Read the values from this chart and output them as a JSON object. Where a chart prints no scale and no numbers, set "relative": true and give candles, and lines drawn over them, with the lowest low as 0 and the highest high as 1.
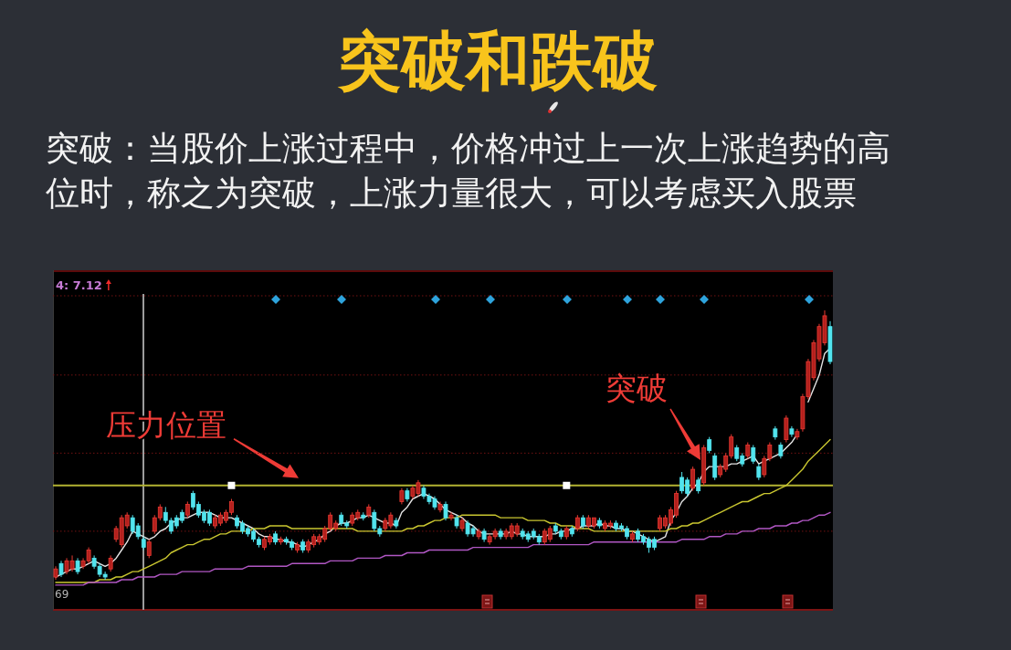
{
  "chart_data": {
    "type": "candlestick",
    "title": "突破和跌破",
    "subtitle": "突破：当股价上涨过程中，价格冲过上一次上涨趋势的高位时，称之为突破，上涨力量很大，可以考虑买入股票",
    "relative": true,
    "categories": [
      null,
      null,
      null,
      null,
      null,
      null,
      null,
      null,
      null,
      null,
      null,
      null,
      null,
      null,
      null,
      null,
      null,
      null,
      null,
      null,
      null,
      null,
      null,
      null,
      null,
      null,
      null,
      null,
      null,
      null,
      null,
      null,
      null,
      null,
      null,
      null,
      null,
      null,
      null,
      null,
      null,
      null,
      null,
      null,
      null,
      null,
      null,
      null,
      null,
      null,
      null,
      null,
      null,
      null,
      null,
      null,
      null,
      null,
      null,
      null,
      null,
      null,
      null,
      null,
      null,
      null,
      null,
      null,
      null,
      null,
      null,
      null,
      null,
      null,
      null,
      null,
      null,
      null,
      null,
      null,
      null,
      null,
      null,
      null,
      null,
      null,
      null,
      null,
      null,
      null,
      null,
      null,
      null,
      null,
      null,
      null,
      null,
      null,
      null,
      null,
      null,
      null,
      null,
      null,
      null,
      null,
      null,
      null,
      null,
      null,
      null,
      null,
      null,
      null,
      null,
      null,
      null,
      null,
      null,
      null,
      null,
      null,
      null,
      null,
      null,
      null,
      null,
      null,
      null,
      null,
      null,
      null,
      null,
      null,
      null,
      null,
      null,
      null,
      null,
      null,
      null,
      null
    ],
    "ohlc": [
      [
        0.01,
        0.05,
        0.0,
        0.04
      ],
      [
        0.06,
        0.07,
        0.01,
        0.02
      ],
      [
        0.03,
        0.08,
        0.02,
        0.07
      ],
      [
        0.04,
        0.09,
        0.03,
        0.07
      ],
      [
        0.07,
        0.08,
        0.02,
        0.03
      ],
      [
        0.05,
        0.08,
        0.04,
        0.07
      ],
      [
        0.07,
        0.12,
        0.06,
        0.11
      ],
      [
        0.08,
        0.09,
        0.04,
        0.05
      ],
      [
        0.05,
        0.06,
        0.01,
        0.02
      ],
      [
        0.02,
        0.03,
        0.0,
        0.01
      ],
      [
        0.04,
        0.09,
        0.03,
        0.08
      ],
      [
        0.15,
        0.2,
        0.14,
        0.19
      ],
      [
        0.13,
        0.24,
        0.12,
        0.23
      ],
      [
        0.2,
        0.25,
        0.19,
        0.24
      ],
      [
        0.23,
        0.24,
        0.17,
        0.18
      ],
      [
        0.2,
        0.21,
        0.15,
        0.16
      ],
      [
        0.15,
        0.16,
        0.11,
        0.12
      ],
      [
        0.09,
        0.15,
        0.08,
        0.14
      ],
      [
        0.18,
        0.24,
        0.17,
        0.23
      ],
      [
        0.23,
        0.28,
        0.22,
        0.27
      ],
      [
        0.25,
        0.27,
        0.21,
        0.22
      ],
      [
        0.22,
        0.23,
        0.17,
        0.18
      ],
      [
        0.23,
        0.24,
        0.19,
        0.2
      ],
      [
        0.25,
        0.26,
        0.21,
        0.22
      ],
      [
        0.24,
        0.29,
        0.23,
        0.28
      ],
      [
        0.32,
        0.33,
        0.26,
        0.27
      ],
      [
        0.28,
        0.29,
        0.23,
        0.24
      ],
      [
        0.25,
        0.26,
        0.21,
        0.22
      ],
      [
        0.25,
        0.26,
        0.2,
        0.21
      ],
      [
        0.2,
        0.24,
        0.19,
        0.23
      ],
      [
        0.21,
        0.25,
        0.2,
        0.24
      ],
      [
        0.22,
        0.26,
        0.21,
        0.25
      ],
      [
        0.25,
        0.3,
        0.24,
        0.29
      ],
      [
        0.23,
        0.24,
        0.19,
        0.2
      ],
      [
        0.21,
        0.22,
        0.17,
        0.18
      ],
      [
        0.19,
        0.2,
        0.16,
        0.17
      ],
      [
        0.18,
        0.19,
        0.14,
        0.15
      ],
      [
        0.15,
        0.16,
        0.12,
        0.13
      ],
      [
        0.12,
        0.16,
        0.11,
        0.15
      ],
      [
        0.14,
        0.17,
        0.13,
        0.16
      ],
      [
        0.17,
        0.18,
        0.13,
        0.14
      ],
      [
        0.14,
        0.16,
        0.13,
        0.15
      ],
      [
        0.15,
        0.16,
        0.13,
        0.14
      ],
      [
        0.14,
        0.15,
        0.11,
        0.12
      ],
      [
        0.11,
        0.14,
        0.1,
        0.13
      ],
      [
        0.14,
        0.15,
        0.1,
        0.11
      ],
      [
        0.11,
        0.15,
        0.1,
        0.14
      ],
      [
        0.13,
        0.17,
        0.12,
        0.16
      ],
      [
        0.14,
        0.17,
        0.13,
        0.16
      ],
      [
        0.15,
        0.2,
        0.14,
        0.19
      ],
      [
        0.19,
        0.25,
        0.18,
        0.24
      ],
      [
        0.19,
        0.22,
        0.18,
        0.21
      ],
      [
        0.24,
        0.25,
        0.2,
        0.21
      ],
      [
        0.21,
        0.22,
        0.19,
        0.2
      ],
      [
        0.21,
        0.25,
        0.2,
        0.24
      ],
      [
        0.23,
        0.26,
        0.22,
        0.25
      ],
      [
        0.24,
        0.25,
        0.22,
        0.23
      ],
      [
        0.24,
        0.28,
        0.23,
        0.27
      ],
      [
        0.25,
        0.26,
        0.18,
        0.19
      ],
      [
        0.19,
        0.2,
        0.16,
        0.17
      ],
      [
        0.19,
        0.23,
        0.18,
        0.22
      ],
      [
        0.2,
        0.25,
        0.19,
        0.24
      ],
      [
        0.22,
        0.23,
        0.19,
        0.2
      ],
      [
        0.29,
        0.34,
        0.28,
        0.33
      ],
      [
        0.33,
        0.34,
        0.29,
        0.3
      ],
      [
        0.31,
        0.35,
        0.3,
        0.34
      ],
      [
        0.32,
        0.37,
        0.31,
        0.36
      ],
      [
        0.34,
        0.35,
        0.3,
        0.31
      ],
      [
        0.31,
        0.32,
        0.28,
        0.29
      ],
      [
        0.3,
        0.31,
        0.26,
        0.27
      ],
      [
        0.26,
        0.29,
        0.25,
        0.28
      ],
      [
        0.28,
        0.29,
        0.22,
        0.23
      ],
      [
        0.23,
        0.25,
        0.22,
        0.24
      ],
      [
        0.23,
        0.24,
        0.19,
        0.2
      ],
      [
        0.19,
        0.23,
        0.18,
        0.22
      ],
      [
        0.21,
        0.22,
        0.16,
        0.17
      ],
      [
        0.19,
        0.2,
        0.16,
        0.17
      ],
      [
        0.16,
        0.19,
        0.15,
        0.18
      ],
      [
        0.18,
        0.19,
        0.14,
        0.15
      ],
      [
        0.14,
        0.17,
        0.13,
        0.16
      ],
      [
        0.16,
        0.19,
        0.15,
        0.18
      ],
      [
        0.18,
        0.19,
        0.15,
        0.16
      ],
      [
        0.16,
        0.19,
        0.15,
        0.18
      ],
      [
        0.16,
        0.21,
        0.15,
        0.2
      ],
      [
        0.17,
        0.21,
        0.16,
        0.2
      ],
      [
        0.18,
        0.19,
        0.15,
        0.16
      ],
      [
        0.17,
        0.18,
        0.14,
        0.15
      ],
      [
        0.18,
        0.19,
        0.15,
        0.16
      ],
      [
        0.16,
        0.17,
        0.13,
        0.14
      ],
      [
        0.14,
        0.19,
        0.13,
        0.18
      ],
      [
        0.15,
        0.2,
        0.14,
        0.19
      ],
      [
        0.2,
        0.21,
        0.17,
        0.18
      ],
      [
        0.18,
        0.19,
        0.15,
        0.16
      ],
      [
        0.16,
        0.2,
        0.15,
        0.19
      ],
      [
        0.19,
        0.2,
        0.16,
        0.17
      ],
      [
        0.19,
        0.24,
        0.18,
        0.23
      ],
      [
        0.23,
        0.24,
        0.19,
        0.2
      ],
      [
        0.2,
        0.24,
        0.19,
        0.23
      ],
      [
        0.2,
        0.23,
        0.19,
        0.23
      ],
      [
        0.22,
        0.23,
        0.19,
        0.2
      ],
      [
        0.19,
        0.22,
        0.18,
        0.21
      ],
      [
        0.2,
        0.22,
        0.19,
        0.21
      ],
      [
        0.21,
        0.22,
        0.18,
        0.19
      ],
      [
        0.2,
        0.21,
        0.18,
        0.19
      ],
      [
        0.19,
        0.2,
        0.15,
        0.16
      ],
      [
        0.15,
        0.18,
        0.14,
        0.17
      ],
      [
        0.18,
        0.19,
        0.14,
        0.15
      ],
      [
        0.16,
        0.17,
        0.13,
        0.14
      ],
      [
        0.15,
        0.16,
        0.1,
        0.12
      ],
      [
        0.15,
        0.16,
        0.11,
        0.12
      ],
      [
        0.19,
        0.24,
        0.18,
        0.23
      ],
      [
        0.2,
        0.24,
        0.19,
        0.23
      ],
      [
        0.21,
        0.27,
        0.2,
        0.26
      ],
      [
        0.24,
        0.33,
        0.23,
        0.32
      ],
      [
        0.38,
        0.4,
        0.32,
        0.33
      ],
      [
        0.37,
        0.38,
        0.31,
        0.32
      ],
      [
        0.34,
        0.42,
        0.33,
        0.41
      ],
      [
        0.37,
        0.38,
        0.32,
        0.33
      ],
      [
        0.36,
        0.5,
        0.35,
        0.49
      ],
      [
        0.52,
        0.53,
        0.47,
        0.48
      ],
      [
        0.46,
        0.47,
        0.37,
        0.38
      ],
      [
        0.39,
        0.43,
        0.38,
        0.42
      ],
      [
        0.41,
        0.47,
        0.4,
        0.46
      ],
      [
        0.46,
        0.54,
        0.45,
        0.53
      ],
      [
        0.49,
        0.5,
        0.44,
        0.45
      ],
      [
        0.46,
        0.47,
        0.42,
        0.43
      ],
      [
        0.46,
        0.51,
        0.45,
        0.5
      ],
      [
        0.49,
        0.5,
        0.43,
        0.44
      ],
      [
        0.42,
        0.43,
        0.37,
        0.38
      ],
      [
        0.39,
        0.46,
        0.38,
        0.45
      ],
      [
        0.45,
        0.51,
        0.44,
        0.5
      ],
      [
        0.56,
        0.57,
        0.52,
        0.53
      ],
      [
        0.5,
        0.51,
        0.45,
        0.46
      ],
      [
        0.52,
        0.61,
        0.51,
        0.6
      ],
      [
        0.56,
        0.57,
        0.53,
        0.54
      ],
      [
        0.53,
        0.56,
        0.52,
        0.55
      ],
      [
        0.56,
        0.69,
        0.55,
        0.68
      ],
      [
        0.68,
        0.82,
        0.67,
        0.81
      ],
      [
        0.75,
        0.89,
        0.74,
        0.88
      ],
      [
        0.82,
        0.95,
        0.81,
        0.94
      ],
      [
        0.88,
        1.0,
        0.87,
        0.98
      ],
      [
        0.94,
        0.96,
        0.8,
        0.81
      ]
    ],
    "series": [
      {
        "type": "line",
        "color": "#e4e4e4",
        "values": [
          0.01,
          0.02,
          0.03,
          0.04,
          0.04,
          0.05,
          0.06,
          0.07,
          0.06,
          0.05,
          0.06,
          0.08,
          0.11,
          0.14,
          0.18,
          0.17,
          0.16,
          0.15,
          0.16,
          0.18,
          0.19,
          0.21,
          0.22,
          0.23,
          0.23,
          0.24,
          0.25,
          0.25,
          0.25,
          0.24,
          0.23,
          0.23,
          0.23,
          0.22,
          0.21,
          0.2,
          0.19,
          0.17,
          0.16,
          0.16,
          0.15,
          0.15,
          0.14,
          0.14,
          0.13,
          0.12,
          0.13,
          0.14,
          0.15,
          0.17,
          0.18,
          0.2,
          0.21,
          0.21,
          0.22,
          0.23,
          0.23,
          0.24,
          0.23,
          0.22,
          0.21,
          0.21,
          0.2,
          0.25,
          0.27,
          0.3,
          0.31,
          0.32,
          0.31,
          0.3,
          0.28,
          0.26,
          0.25,
          0.24,
          0.23,
          0.21,
          0.2,
          0.18,
          0.17,
          0.17,
          0.17,
          0.17,
          0.17,
          0.18,
          0.17,
          0.17,
          0.16,
          0.16,
          0.16,
          0.16,
          0.17,
          0.17,
          0.18,
          0.18,
          0.19,
          0.19,
          0.2,
          0.2,
          0.2,
          0.21,
          0.2,
          0.2,
          0.19,
          0.19,
          0.18,
          0.18,
          0.17,
          0.16,
          0.15,
          0.14,
          0.15,
          0.16,
          0.22,
          0.25,
          0.29,
          0.31,
          0.34,
          0.36,
          0.4,
          0.42,
          0.42,
          0.42,
          0.42,
          0.43,
          0.43,
          0.44,
          0.45,
          0.46,
          0.43,
          0.44,
          0.45,
          0.46,
          0.47,
          0.49,
          0.51,
          0.54,
          null,
          0.66,
          0.71,
          0.76,
          0.84,
          0.86
        ]
      },
      {
        "type": "line",
        "color": "#c9c630",
        "values": [
          -0.01,
          -0.01,
          -0.01,
          -0.01,
          -0.01,
          -0.01,
          -0.01,
          -0.01,
          0.0,
          0.0,
          0.0,
          0.01,
          0.01,
          0.02,
          0.03,
          0.03,
          0.04,
          0.05,
          0.06,
          0.07,
          0.08,
          0.1,
          0.11,
          0.12,
          0.13,
          0.13,
          0.14,
          0.15,
          0.15,
          0.16,
          0.17,
          0.17,
          0.18,
          0.18,
          0.18,
          0.18,
          0.19,
          0.19,
          0.19,
          0.2,
          0.2,
          0.2,
          0.2,
          0.19,
          0.19,
          0.19,
          0.19,
          0.19,
          0.19,
          0.19,
          0.19,
          0.19,
          0.19,
          0.19,
          0.19,
          0.18,
          0.18,
          0.18,
          0.18,
          0.18,
          0.18,
          0.18,
          0.18,
          0.18,
          0.19,
          0.19,
          0.2,
          0.2,
          0.21,
          0.22,
          0.22,
          0.23,
          0.23,
          0.23,
          0.24,
          0.24,
          0.24,
          0.24,
          0.24,
          0.24,
          0.24,
          0.23,
          0.23,
          0.23,
          0.23,
          0.23,
          0.22,
          0.22,
          0.22,
          0.22,
          0.21,
          0.21,
          0.2,
          0.2,
          0.2,
          0.19,
          0.19,
          0.19,
          0.18,
          0.18,
          0.18,
          0.18,
          0.18,
          0.18,
          0.18,
          0.18,
          0.18,
          0.18,
          0.18,
          0.18,
          0.18,
          0.18,
          0.19,
          0.19,
          0.2,
          0.2,
          0.21,
          0.21,
          0.22,
          0.23,
          0.24,
          0.25,
          0.26,
          0.27,
          0.28,
          0.29,
          0.29,
          0.3,
          0.31,
          0.32,
          0.32,
          0.33,
          0.34,
          0.35,
          0.37,
          0.39,
          0.41,
          0.44,
          0.46,
          0.48,
          0.5,
          0.52
        ]
      },
      {
        "type": "line",
        "color": "#b157c4",
        "values": [
          -0.02,
          -0.02,
          -0.02,
          -0.02,
          -0.02,
          -0.02,
          -0.01,
          -0.01,
          -0.01,
          -0.01,
          -0.01,
          -0.01,
          0.0,
          0.0,
          0.0,
          0.01,
          0.01,
          0.01,
          0.01,
          0.02,
          0.02,
          0.02,
          0.02,
          0.03,
          0.03,
          0.03,
          0.03,
          0.03,
          0.03,
          0.04,
          0.04,
          0.04,
          0.04,
          0.04,
          0.04,
          0.05,
          0.05,
          0.05,
          0.05,
          0.05,
          0.05,
          0.05,
          0.05,
          0.06,
          0.06,
          0.06,
          0.06,
          0.06,
          0.06,
          0.06,
          0.07,
          0.07,
          0.07,
          0.07,
          0.07,
          0.08,
          0.08,
          0.08,
          0.08,
          0.08,
          0.09,
          0.09,
          0.09,
          0.09,
          0.1,
          0.1,
          0.1,
          0.1,
          0.11,
          0.11,
          0.11,
          0.11,
          0.11,
          0.11,
          0.11,
          0.11,
          0.12,
          0.12,
          0.12,
          0.12,
          0.12,
          0.12,
          0.12,
          0.12,
          0.12,
          0.12,
          0.12,
          0.13,
          0.13,
          0.13,
          0.13,
          0.13,
          0.13,
          0.13,
          0.13,
          0.13,
          0.13,
          0.13,
          0.14,
          0.14,
          0.14,
          0.14,
          0.14,
          0.14,
          0.14,
          0.14,
          0.14,
          0.14,
          0.14,
          0.14,
          0.14,
          0.14,
          0.14,
          0.14,
          0.15,
          0.15,
          0.15,
          0.15,
          0.15,
          0.16,
          0.16,
          0.16,
          0.17,
          0.17,
          0.17,
          0.18,
          0.18,
          0.18,
          0.19,
          0.19,
          0.19,
          0.2,
          0.2,
          0.2,
          0.21,
          0.21,
          0.22,
          0.22,
          0.23,
          0.24,
          0.24,
          0.25
        ]
      },
      {
        "type": "scatter",
        "marker": "square",
        "color": "#ffffff",
        "values": [
          null,
          null,
          null,
          null,
          null,
          null,
          null,
          null,
          null,
          null,
          null,
          null,
          null,
          null,
          null,
          null,
          null,
          null,
          null,
          null,
          null,
          null,
          null,
          null,
          null,
          null,
          null,
          null,
          null,
          null,
          null,
          null,
          0.35,
          null,
          null,
          null,
          null,
          null,
          null,
          null,
          null,
          null,
          null,
          null,
          null,
          null,
          null,
          null,
          null,
          null,
          null,
          null,
          null,
          null,
          null,
          null,
          null,
          null,
          null,
          null,
          null,
          null,
          null,
          null,
          null,
          null,
          null,
          null,
          null,
          null,
          null,
          null,
          null,
          null,
          null,
          null,
          null,
          null,
          null,
          null,
          null,
          null,
          null,
          null,
          null,
          null,
          null,
          null,
          null,
          null,
          null,
          null,
          null,
          0.35,
          null,
          null,
          null,
          null,
          null,
          null,
          null,
          null,
          null,
          null,
          null,
          null,
          null,
          null,
          null,
          null,
          null,
          null,
          null,
          null,
          null,
          null,
          null,
          null,
          null,
          null,
          null,
          null,
          null,
          null,
          null,
          null,
          null,
          null,
          null,
          null,
          null,
          null,
          null,
          null,
          null,
          null,
          null,
          null,
          null,
          null,
          null,
          null
        ]
      }
    ],
    "ref_lines": [
      {
        "axis": "y",
        "value": 0.35,
        "label": "压力位置",
        "color": "#b3b332"
      },
      {
        "axis": "y",
        "value": 0.18,
        "color": "#731212",
        "line_style": "dotted"
      },
      {
        "axis": "y",
        "value": 0.47,
        "color": "#731212",
        "line_style": "dotted"
      },
      {
        "axis": "y",
        "value": 0.76,
        "color": "#731212",
        "line_style": "dotted"
      }
    ],
    "annotations": [
      "4: 7.12",
      "69",
      "突破"
    ]
  }
}
